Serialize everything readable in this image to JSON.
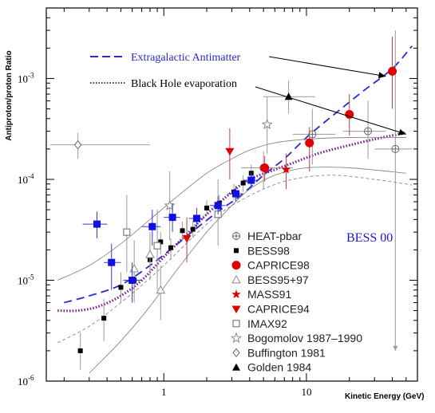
{
  "chart_data": {
    "type": "scatter",
    "title": "",
    "xlabel": "Kinetic Energy (GeV)",
    "ylabel": "Antiproton/proton Ratio",
    "xscale": "log",
    "yscale": "log",
    "xlim": [
      0.15,
      60
    ],
    "ylim": [
      1e-06,
      0.005
    ],
    "x_tick_labels": [
      {
        "v": 1,
        "label": "1"
      },
      {
        "v": 10,
        "label": "10"
      }
    ],
    "y_tick_labels": [
      {
        "v": 1e-06,
        "base": "10",
        "exp": "-6"
      },
      {
        "v": 1e-05,
        "base": "10",
        "exp": "-5"
      },
      {
        "v": 0.0001,
        "base": "10",
        "exp": "-4"
      },
      {
        "v": 0.001,
        "base": "10",
        "exp": "-3"
      }
    ],
    "annotation_label": "BESS 00",
    "annotations": [
      {
        "text": "Extragalactic Antimatter",
        "color": "#2a2acc",
        "line_style": "dashed",
        "arrow_to": [
          36,
          0.00105
        ]
      },
      {
        "text": "Black Hole evaporation",
        "color": "#000000",
        "line_style": "dotted",
        "arrow_to": [
          50,
          0.00028
        ]
      }
    ],
    "curves": [
      {
        "id": "extragalactic",
        "style": "dashed",
        "color": "#2a2acc",
        "x": [
          0.2,
          0.3,
          0.5,
          0.8,
          1.2,
          1.8,
          2.5,
          3.5,
          5,
          7,
          10,
          15,
          25,
          40,
          55
        ],
        "y": [
          6e-06,
          7e-06,
          9e-06,
          1.4e-05,
          2.2e-05,
          3.5e-05,
          5e-05,
          7e-05,
          0.00011,
          0.00016,
          0.00026,
          0.00042,
          0.00075,
          0.00125,
          0.0021
        ]
      },
      {
        "id": "black-hole",
        "style": "dotted",
        "color": "#7a1a8a",
        "x": [
          0.18,
          0.25,
          0.35,
          0.5,
          0.7,
          1,
          1.5,
          2,
          3,
          4,
          6,
          8,
          12,
          18,
          30,
          50
        ],
        "y": [
          5e-06,
          5e-06,
          5.5e-06,
          7e-06,
          1e-05,
          1.7e-05,
          3e-05,
          4.5e-05,
          7.5e-05,
          0.0001,
          0.000125,
          0.000145,
          0.00018,
          0.00021,
          0.00025,
          0.00029
        ]
      },
      {
        "id": "band-upper",
        "style": "solid",
        "color": "#888888",
        "x": [
          0.18,
          0.3,
          0.5,
          0.8,
          1.2,
          2,
          3,
          4,
          6,
          10,
          20,
          50
        ],
        "y": [
          1e-05,
          1.4e-05,
          2.3e-05,
          4e-05,
          6.5e-05,
          0.000115,
          0.00016,
          0.000195,
          0.00023,
          0.00025,
          0.00026,
          0.00026
        ]
      },
      {
        "id": "band-lower",
        "style": "solid",
        "color": "#888888",
        "x": [
          0.3,
          0.5,
          0.8,
          1.2,
          2,
          3,
          4,
          6,
          10,
          20,
          50
        ],
        "y": [
          1.2e-06,
          2.5e-06,
          5.5e-06,
          1.2e-05,
          3e-05,
          5.5e-05,
          8e-05,
          0.00011,
          0.00013,
          0.00013,
          0.000115
        ]
      },
      {
        "id": "band-mid",
        "style": "dashed-thin",
        "color": "#888888",
        "x": [
          0.18,
          0.3,
          0.5,
          0.8,
          1.2,
          2,
          3,
          5,
          8,
          15,
          30,
          55
        ],
        "y": [
          2.4e-06,
          3.5e-06,
          6e-06,
          1.05e-05,
          1.8e-05,
          3.6e-05,
          5.5e-05,
          8e-05,
          0.0001,
          0.00011,
          0.0001,
          8.8e-05
        ]
      }
    ],
    "series": [
      {
        "name": "HEAT-pbar",
        "marker": "open-circle-cross",
        "color": "#666666",
        "points": [
          {
            "x": 5,
            "y": 0.00013,
            "xerr": [
              3.5,
              8
            ],
            "yerr": [
              8e-05,
              0.00019
            ]
          },
          {
            "x": 11,
            "y": 0.00028,
            "xerr": [
              8,
              16
            ],
            "yerr": [
              0.00014,
              0.0005
            ]
          },
          {
            "x": 27,
            "y": 0.0003,
            "xerr": [
              18,
              36
            ],
            "yerr": [
              0.00016,
              0.0006
            ]
          },
          {
            "x": 42,
            "y": 0.0002,
            "xerr": [
              30,
              55
            ],
            "yerr": [
              2e-06,
              0.003
            ]
          }
        ]
      },
      {
        "name": "BESS98",
        "marker": "filled-square-small",
        "color": "#000000",
        "points": [
          {
            "x": 0.26,
            "y": 2e-06,
            "yerr": [
              1.3e-06,
              3e-06
            ]
          },
          {
            "x": 0.38,
            "y": 4.2e-06,
            "yerr": [
              2.5e-06,
              6.5e-06
            ]
          },
          {
            "x": 0.5,
            "y": 8.5e-06,
            "yerr": [
              6e-06,
              1.2e-05
            ]
          },
          {
            "x": 0.62,
            "y": 1e-05,
            "yerr": [
              7.5e-06,
              1.3e-05
            ]
          },
          {
            "x": 0.8,
            "y": 1.6e-05,
            "yerr": [
              1.2e-05,
              2.1e-05
            ]
          },
          {
            "x": 0.95,
            "y": 2.4e-05,
            "yerr": [
              1.8e-05,
              3e-05
            ]
          },
          {
            "x": 1.12,
            "y": 2.1e-05,
            "yerr": [
              1.6e-05,
              2.6e-05
            ]
          },
          {
            "x": 1.35,
            "y": 3.1e-05,
            "yerr": [
              2.5e-05,
              3.8e-05
            ]
          },
          {
            "x": 1.6,
            "y": 3.2e-05,
            "yerr": [
              2.6e-05,
              3.9e-05
            ]
          },
          {
            "x": 2,
            "y": 5.2e-05,
            "yerr": [
              4.3e-05,
              6.2e-05
            ]
          },
          {
            "x": 2.45,
            "y": 5.8e-05,
            "yerr": [
              4.8e-05,
              7e-05
            ]
          },
          {
            "x": 3.1,
            "y": 7.5e-05,
            "yerr": [
              6.2e-05,
              9e-05
            ]
          },
          {
            "x": 3.6,
            "y": 9.2e-05,
            "yerr": [
              7.5e-05,
              0.00011
            ]
          },
          {
            "x": 4.1,
            "y": 0.000115,
            "yerr": [
              9e-05,
              0.00014
            ]
          }
        ]
      },
      {
        "name": "CAPRICE98",
        "marker": "filled-circle",
        "color": "#e00000",
        "points": [
          {
            "x": 5.1,
            "y": 0.00013,
            "yerr": [
              9.5e-05,
              0.00017
            ]
          },
          {
            "x": 10.5,
            "y": 0.00023,
            "yerr": [
              0.00012,
              0.00033
            ]
          },
          {
            "x": 20,
            "y": 0.00044,
            "yerr": [
              0.00027,
              0.0007
            ]
          },
          {
            "x": 40,
            "y": 0.00118,
            "yerr": [
              0.0005,
              0.0026
            ]
          }
        ]
      },
      {
        "name": "BESS95+97",
        "marker": "open-triangle",
        "color": "#888888",
        "points": [
          {
            "x": 0.62,
            "y": 1.3e-05,
            "yerr": [
              6e-06,
              2.5e-05
            ]
          },
          {
            "x": 0.8,
            "y": 1.8e-05,
            "yerr": [
              1e-05,
              3e-05
            ]
          },
          {
            "x": 0.95,
            "y": 8e-06,
            "yerr": [
              4e-06,
              1.4e-05
            ]
          }
        ]
      },
      {
        "name": "MASS91",
        "marker": "filled-star",
        "color": "#e00000",
        "points": [
          {
            "x": 7.2,
            "y": 0.000125,
            "yerr": [
              8e-05,
              0.00018
            ]
          }
        ]
      },
      {
        "name": "CAPRICE94",
        "marker": "filled-triangle-down",
        "color": "#e00000",
        "points": [
          {
            "x": 1.45,
            "y": 2.6e-05,
            "yerr": [
              1.5e-05,
              4.2e-05
            ]
          },
          {
            "x": 2.9,
            "y": 0.00019,
            "yerr": [
              0.0001,
              0.00032
            ]
          }
        ]
      },
      {
        "name": "IMAX92",
        "marker": "open-square",
        "color": "#666666",
        "points": [
          {
            "x": 0.55,
            "y": 3e-05,
            "yerr": [
              1.2e-05,
              7e-05
            ]
          },
          {
            "x": 0.9,
            "y": 2.2e-05,
            "yerr": [
              8e-06,
              5e-05
            ]
          },
          {
            "x": 2.4,
            "y": 4.5e-05,
            "yerr": [
              2.2e-05,
              0.0001
            ]
          }
        ]
      },
      {
        "name": "Bogomolov 1987–1990",
        "marker": "open-star",
        "color": "#888888",
        "points": [
          {
            "x": 1.1,
            "y": 5.5e-05,
            "yerr": [
              2.5e-05,
              0.00012
            ]
          },
          {
            "x": 5.3,
            "y": 0.00035,
            "yerr": [
              0.00018,
              0.00065
            ]
          }
        ]
      },
      {
        "name": "Buffington 1981",
        "marker": "open-diamond",
        "color": "#666666",
        "points": [
          {
            "x": 0.25,
            "y": 0.00022,
            "xerr": [
              0.16,
              0.8
            ],
            "yerr": [
              0.00016,
              0.00029
            ]
          }
        ]
      },
      {
        "name": "Golden 1984",
        "marker": "filled-triangle-up",
        "color": "#000000",
        "points": [
          {
            "x": 7.5,
            "y": 0.00066,
            "xerr": [
              5,
              11.5
            ],
            "yerr": [
              0.00045,
              0.00095
            ]
          }
        ]
      },
      {
        "name": "",
        "marker": "filled-square-large",
        "color": "#1010e0",
        "legend": false,
        "points": [
          {
            "x": 0.34,
            "y": 3.6e-05,
            "xerr": [
              0.27,
              0.4
            ],
            "yerr": [
              2.6e-05,
              4.8e-05
            ]
          },
          {
            "x": 0.43,
            "y": 1.5e-05,
            "xerr": [
              0.38,
              0.5
            ],
            "yerr": [
              8e-06,
              2.3e-05
            ]
          },
          {
            "x": 0.6,
            "y": 1e-05,
            "xerr": [
              0.52,
              0.7
            ],
            "yerr": [
              6e-06,
              1.5e-05
            ]
          },
          {
            "x": 0.83,
            "y": 3.4e-05,
            "xerr": [
              0.7,
              0.95
            ],
            "yerr": [
              2.2e-05,
              5e-05
            ]
          },
          {
            "x": 1.15,
            "y": 4.2e-05,
            "xerr": [
              1,
              1.3
            ],
            "yerr": [
              3e-05,
              5.8e-05
            ]
          },
          {
            "x": 1.7,
            "y": 4.1e-05,
            "xerr": [
              1.5,
              1.9
            ],
            "yerr": [
              3.2e-05,
              5.2e-05
            ]
          },
          {
            "x": 2.4,
            "y": 5.5e-05,
            "xerr": [
              2.1,
              2.7
            ],
            "yerr": [
              4.5e-05,
              6.8e-05
            ]
          },
          {
            "x": 3.2,
            "y": 7.2e-05,
            "xerr": [
              2.8,
              3.6
            ],
            "yerr": [
              6e-05,
              8.6e-05
            ]
          },
          {
            "x": 4.1,
            "y": 9.8e-05,
            "xerr": [
              3.6,
              4.6
            ],
            "yerr": [
              8.2e-05,
              0.000117
            ]
          }
        ]
      }
    ],
    "legend_position": "lower-right",
    "grid": false
  }
}
